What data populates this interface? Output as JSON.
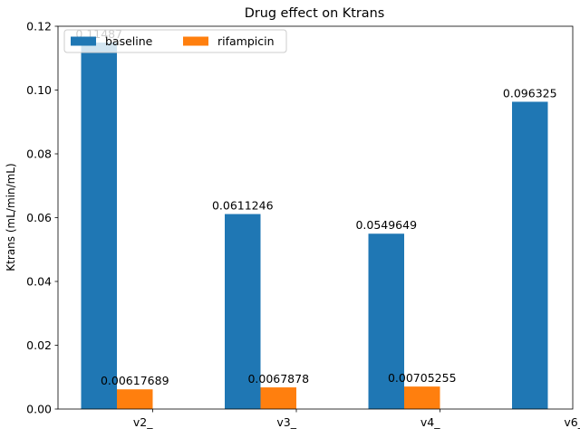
{
  "chart_data": {
    "type": "bar",
    "title": "Drug effect on Ktrans",
    "xlabel": "",
    "ylabel": "Ktrans (mL/min/mL)",
    "categories": [
      "v2_",
      "v3_",
      "v4_",
      "v6_"
    ],
    "series": [
      {
        "name": "baseline",
        "color": "#1f77b4",
        "values": [
          0.11487,
          0.0611246,
          0.0549649,
          0.096325
        ],
        "labels": [
          "0.11487",
          "0.0611246",
          "0.0549649",
          "0.096325"
        ]
      },
      {
        "name": "rifampicin",
        "color": "#ff7f0e",
        "values": [
          0.00617689,
          0.0067878,
          0.00705255,
          null
        ],
        "labels": [
          "0.00617689",
          "0.0067878",
          "0.00705255",
          ""
        ]
      }
    ],
    "ylim": [
      0,
      0.12
    ],
    "yticks": [
      0.0,
      0.02,
      0.04,
      0.06,
      0.08,
      0.1,
      0.12
    ],
    "ytick_labels": [
      "0.00",
      "0.02",
      "0.04",
      "0.06",
      "0.08",
      "0.10",
      "0.12"
    ],
    "grid": false,
    "legend": {
      "position": "top-left",
      "ncol": 2
    }
  }
}
